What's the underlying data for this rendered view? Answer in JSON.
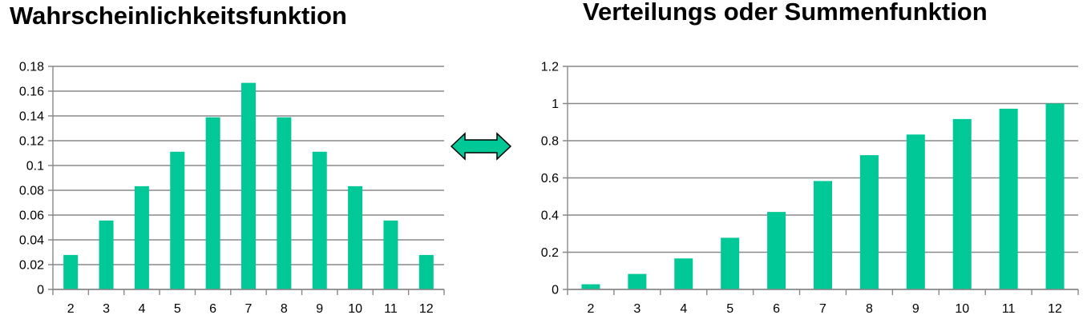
{
  "colors": {
    "bar": "#00c896",
    "grid": "#888888",
    "axis": "#888888",
    "arrow_fill": "#00c896",
    "arrow_stroke": "#000000"
  },
  "icons": {
    "arrow": "double-headed-arrow-icon"
  },
  "chart_data": [
    {
      "type": "bar",
      "title": "Wahrscheinlichkeitsfunktion",
      "xlabel": "",
      "ylabel": "",
      "categories": [
        "2",
        "3",
        "4",
        "5",
        "6",
        "7",
        "8",
        "9",
        "10",
        "11",
        "12"
      ],
      "values": [
        0.0278,
        0.0556,
        0.0833,
        0.1111,
        0.1389,
        0.1667,
        0.1389,
        0.1111,
        0.0833,
        0.0556,
        0.0278
      ],
      "ylim": [
        0,
        0.18
      ],
      "yticks": [
        "0",
        "0.02",
        "0.04",
        "0.06",
        "0.08",
        "0.1",
        "0.12",
        "0.14",
        "0.16",
        "0.18"
      ],
      "grid": true,
      "legend": "none"
    },
    {
      "type": "bar",
      "title": "Verteilungs oder Summenfunktion",
      "xlabel": "",
      "ylabel": "",
      "categories": [
        "2",
        "3",
        "4",
        "5",
        "6",
        "7",
        "8",
        "9",
        "10",
        "11",
        "12"
      ],
      "values": [
        0.0278,
        0.0833,
        0.1667,
        0.2778,
        0.4167,
        0.5833,
        0.7222,
        0.8333,
        0.9167,
        0.9722,
        1.0
      ],
      "ylim": [
        0,
        1.2
      ],
      "yticks": [
        "0",
        "0.2",
        "0.4",
        "0.6",
        "0.8",
        "1",
        "1.2"
      ],
      "grid": true,
      "legend": "none"
    }
  ]
}
